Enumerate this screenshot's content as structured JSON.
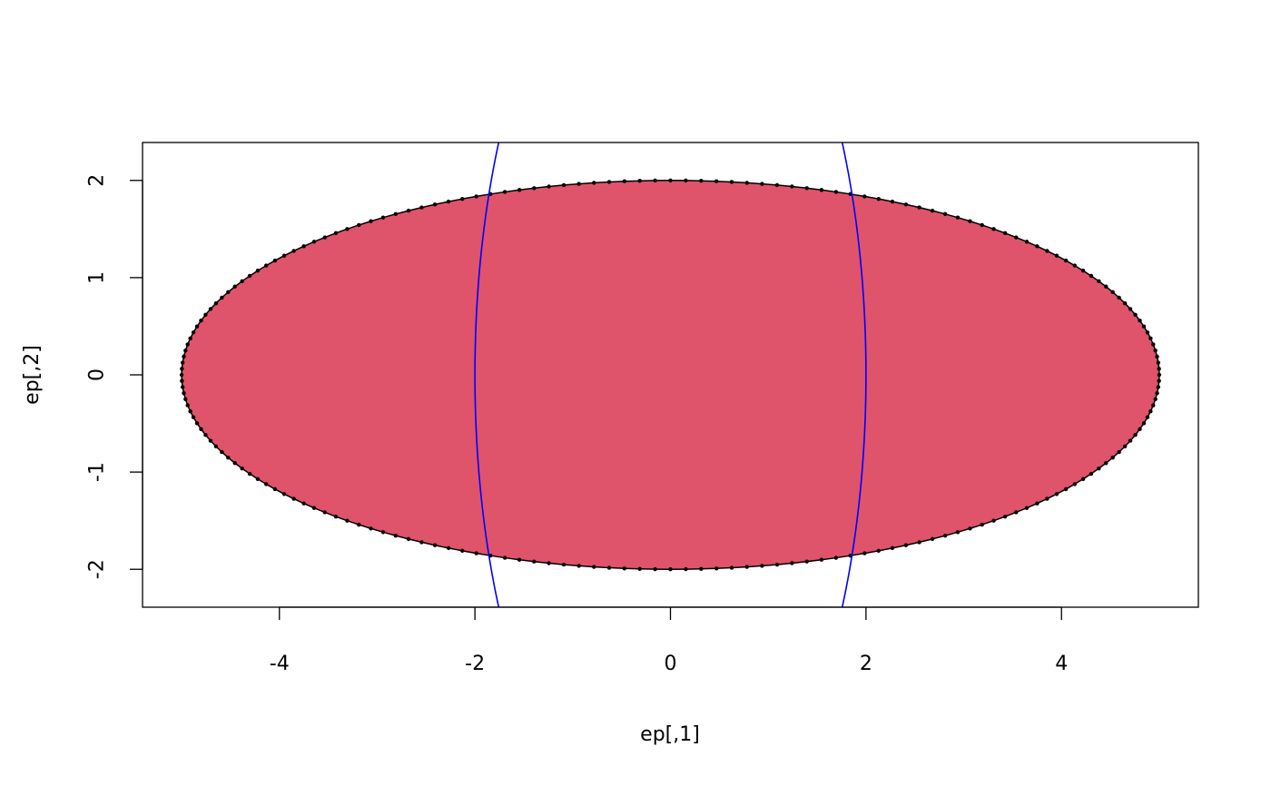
{
  "chart_data": {
    "type": "scatter",
    "title": "",
    "xlabel": "ep[,1]",
    "ylabel": "ep[,2]",
    "xlim": [
      -5.4,
      5.4
    ],
    "ylim": [
      -2.39,
      2.39
    ],
    "xticks": [
      -4,
      -2,
      0,
      2,
      4
    ],
    "yticks": [
      -2,
      -1,
      0,
      1,
      2
    ],
    "xtick_labels": [
      "-4",
      "-2",
      "0",
      "2",
      "4"
    ],
    "ytick_labels": [
      "-2",
      "-1",
      "0",
      "1",
      "2"
    ],
    "grid": false,
    "series": [
      {
        "kind": "filled-ellipse-with-points",
        "center": [
          0,
          0
        ],
        "semi_axis_x": 5,
        "semi_axis_y": 2,
        "n_points": 200,
        "fill": "#DF536B",
        "stroke": "#000000"
      },
      {
        "kind": "ellipse-line",
        "center": [
          0,
          0
        ],
        "semi_axis_x": 2,
        "semi_axis_y": 5,
        "stroke": "#0000FF"
      }
    ]
  }
}
